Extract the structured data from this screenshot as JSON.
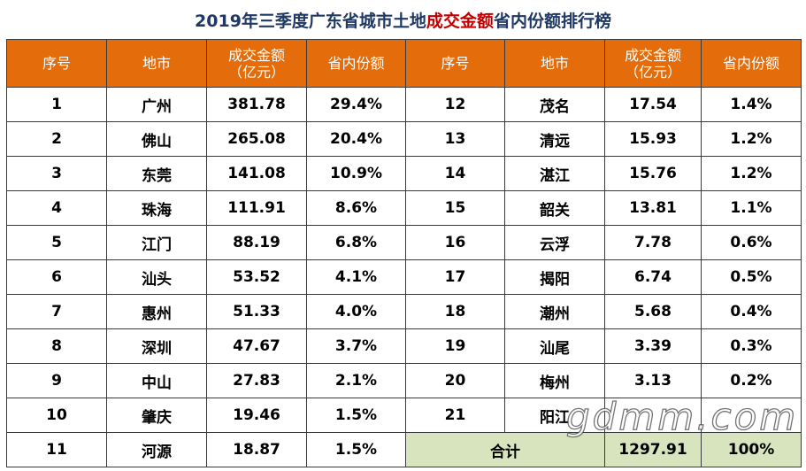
{
  "title": {
    "part1": "2019年三季度广东省城市土地",
    "highlight": "成交金额",
    "part2": "省内份额排行榜"
  },
  "headers": {
    "rank": "序号",
    "city": "地市",
    "amount_line1": "成交金额",
    "amount_line2": "（亿元）",
    "share": "省内份额"
  },
  "left_rows": [
    {
      "rank": "1",
      "city": "广州",
      "amount": "381.78",
      "share": "29.4%"
    },
    {
      "rank": "2",
      "city": "佛山",
      "amount": "265.08",
      "share": "20.4%"
    },
    {
      "rank": "3",
      "city": "东莞",
      "amount": "141.08",
      "share": "10.9%"
    },
    {
      "rank": "4",
      "city": "珠海",
      "amount": "111.91",
      "share": "8.6%"
    },
    {
      "rank": "5",
      "city": "江门",
      "amount": "88.19",
      "share": "6.8%"
    },
    {
      "rank": "6",
      "city": "汕头",
      "amount": "53.52",
      "share": "4.1%"
    },
    {
      "rank": "7",
      "city": "惠州",
      "amount": "51.33",
      "share": "4.0%"
    },
    {
      "rank": "8",
      "city": "深圳",
      "amount": "47.67",
      "share": "3.7%"
    },
    {
      "rank": "9",
      "city": "中山",
      "amount": "27.83",
      "share": "2.1%"
    },
    {
      "rank": "10",
      "city": "肇庆",
      "amount": "19.46",
      "share": "1.5%"
    },
    {
      "rank": "11",
      "city": "河源",
      "amount": "18.87",
      "share": "1.5%"
    }
  ],
  "right_rows": [
    {
      "rank": "12",
      "city": "茂名",
      "amount": "17.54",
      "share": "1.4%"
    },
    {
      "rank": "13",
      "city": "清远",
      "amount": "15.93",
      "share": "1.2%"
    },
    {
      "rank": "14",
      "city": "湛江",
      "amount": "15.76",
      "share": "1.2%"
    },
    {
      "rank": "15",
      "city": "韶关",
      "amount": "13.81",
      "share": "1.1%"
    },
    {
      "rank": "16",
      "city": "云浮",
      "amount": "7.78",
      "share": "0.6%"
    },
    {
      "rank": "17",
      "city": "揭阳",
      "amount": "6.74",
      "share": "0.5%"
    },
    {
      "rank": "18",
      "city": "潮州",
      "amount": "5.68",
      "share": "0.4%"
    },
    {
      "rank": "19",
      "city": "汕尾",
      "amount": "3.39",
      "share": "0.3%"
    },
    {
      "rank": "20",
      "city": "梅州",
      "amount": "3.13",
      "share": "0.2%"
    },
    {
      "rank": "21",
      "city": "阳江",
      "amount": "",
      "share": ""
    }
  ],
  "total": {
    "label": "合计",
    "amount": "1297.91",
    "share": "100%"
  },
  "watermark": "gdmm.com",
  "colors": {
    "header_bg": "#e46c0a",
    "title_text": "#1f3864",
    "title_highlight": "#c00000",
    "total_bg": "#d7e4bd"
  }
}
